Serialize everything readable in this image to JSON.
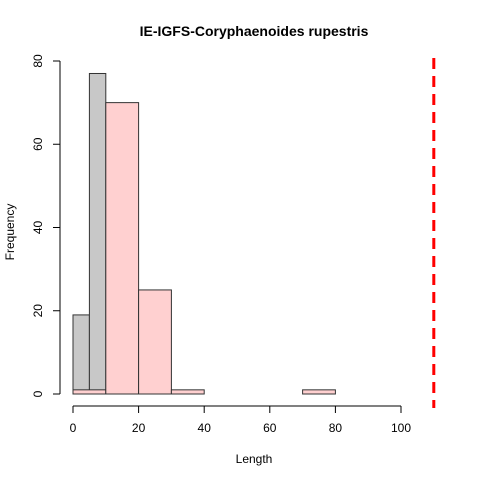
{
  "chart_data": {
    "type": "bar",
    "title": "IE-IGFS-Coryphaenoides rupestris",
    "xlabel": "Length",
    "ylabel": "Frequency",
    "xlim": [
      0,
      100
    ],
    "ylim": [
      0,
      80
    ],
    "x_ticks": [
      "0",
      "20",
      "40",
      "60",
      "80",
      "100"
    ],
    "y_ticks": [
      "0",
      "20",
      "40",
      "60",
      "80"
    ],
    "grid": false,
    "series": [
      {
        "fill": "#c8c8c8",
        "bins": [
          {
            "x0": 0,
            "x1": 5,
            "count": 19
          },
          {
            "x0": 5,
            "x1": 10,
            "count": 77
          },
          {
            "x0": 10,
            "x1": 15,
            "count": 1
          },
          {
            "x0": 25,
            "x1": 30,
            "count": 1
          }
        ]
      },
      {
        "fill": "#ffd0d0",
        "bins": [
          {
            "x0": 0,
            "x1": 10,
            "count": 1
          },
          {
            "x0": 10,
            "x1": 20,
            "count": 70
          },
          {
            "x0": 20,
            "x1": 30,
            "count": 25
          },
          {
            "x0": 30,
            "x1": 40,
            "count": 1
          },
          {
            "x0": 40,
            "x1": 50,
            "count": 0
          },
          {
            "x0": 50,
            "x1": 60,
            "count": 0
          },
          {
            "x0": 60,
            "x1": 70,
            "count": 0
          },
          {
            "x0": 70,
            "x1": 80,
            "count": 1
          }
        ]
      }
    ],
    "reference_line": {
      "x": 110,
      "color": "#ff0000",
      "style": "dashed"
    }
  }
}
